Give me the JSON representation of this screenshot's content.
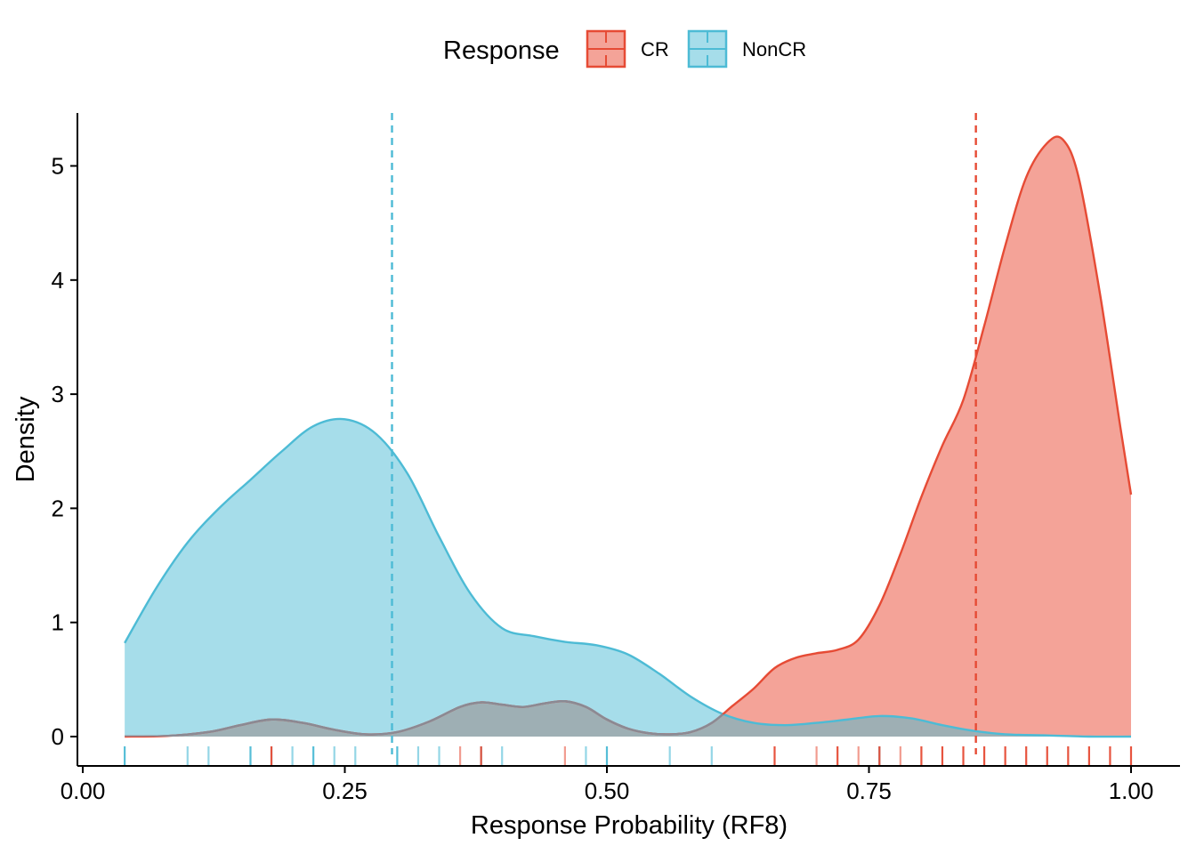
{
  "chart_data": {
    "type": "area",
    "xlabel": "Response Probability (RF8)",
    "ylabel": "Density",
    "xlim": [
      0.0,
      1.0
    ],
    "ylim": [
      0,
      5.3
    ],
    "x_ticks": [
      "0.00",
      "0.25",
      "0.50",
      "0.75",
      "1.00"
    ],
    "y_ticks": [
      "0",
      "1",
      "2",
      "3",
      "4",
      "5"
    ],
    "grid": false,
    "legend": {
      "title": "Response",
      "position": "top",
      "entries": [
        "CR",
        "NonCR"
      ]
    },
    "colors": {
      "CR_line": "#E64B35",
      "CR_fill": "#F4A398",
      "NonCR_line": "#4DBBD5",
      "NonCR_fill": "#A6DDEA",
      "overlap_fill": "#9EAFB4",
      "overlap_line": "#8A8A94"
    },
    "series": [
      {
        "name": "CR",
        "mean": 0.852,
        "x": [
          0.04,
          0.08,
          0.12,
          0.15,
          0.18,
          0.21,
          0.24,
          0.27,
          0.3,
          0.33,
          0.36,
          0.38,
          0.4,
          0.42,
          0.44,
          0.46,
          0.48,
          0.5,
          0.52,
          0.54,
          0.56,
          0.58,
          0.6,
          0.62,
          0.64,
          0.66,
          0.68,
          0.7,
          0.72,
          0.74,
          0.76,
          0.78,
          0.8,
          0.82,
          0.84,
          0.86,
          0.88,
          0.9,
          0.92,
          0.935,
          0.95,
          0.97,
          0.99,
          1.0
        ],
        "y": [
          0.0,
          0.005,
          0.04,
          0.1,
          0.15,
          0.12,
          0.06,
          0.02,
          0.04,
          0.13,
          0.26,
          0.3,
          0.28,
          0.26,
          0.29,
          0.31,
          0.26,
          0.15,
          0.07,
          0.03,
          0.02,
          0.04,
          0.12,
          0.27,
          0.42,
          0.6,
          0.69,
          0.73,
          0.76,
          0.85,
          1.15,
          1.6,
          2.1,
          2.55,
          2.95,
          3.6,
          4.3,
          4.9,
          5.2,
          5.23,
          4.9,
          3.9,
          2.7,
          2.12
        ]
      },
      {
        "name": "NonCR",
        "mean": 0.295,
        "x": [
          0.04,
          0.07,
          0.1,
          0.13,
          0.16,
          0.19,
          0.22,
          0.25,
          0.28,
          0.31,
          0.34,
          0.37,
          0.4,
          0.43,
          0.46,
          0.49,
          0.52,
          0.55,
          0.58,
          0.61,
          0.64,
          0.67,
          0.7,
          0.73,
          0.76,
          0.79,
          0.82,
          0.85,
          0.88,
          0.92,
          0.96,
          1.0
        ],
        "y": [
          0.82,
          1.3,
          1.7,
          2.0,
          2.25,
          2.5,
          2.72,
          2.78,
          2.65,
          2.3,
          1.75,
          1.25,
          0.95,
          0.88,
          0.83,
          0.8,
          0.72,
          0.55,
          0.35,
          0.2,
          0.12,
          0.1,
          0.12,
          0.15,
          0.18,
          0.16,
          0.1,
          0.05,
          0.02,
          0.01,
          0.0,
          0.0
        ]
      }
    ],
    "rug": {
      "CR": [
        0.18,
        0.36,
        0.38,
        0.46,
        0.66,
        0.7,
        0.72,
        0.74,
        0.76,
        0.78,
        0.8,
        0.82,
        0.84,
        0.86,
        0.88,
        0.9,
        0.92,
        0.94,
        0.96,
        0.98,
        1.0
      ],
      "NonCR": [
        0.04,
        0.1,
        0.12,
        0.16,
        0.18,
        0.2,
        0.22,
        0.24,
        0.26,
        0.3,
        0.32,
        0.34,
        0.38,
        0.4,
        0.48,
        0.5,
        0.56,
        0.6,
        0.76
      ]
    }
  }
}
